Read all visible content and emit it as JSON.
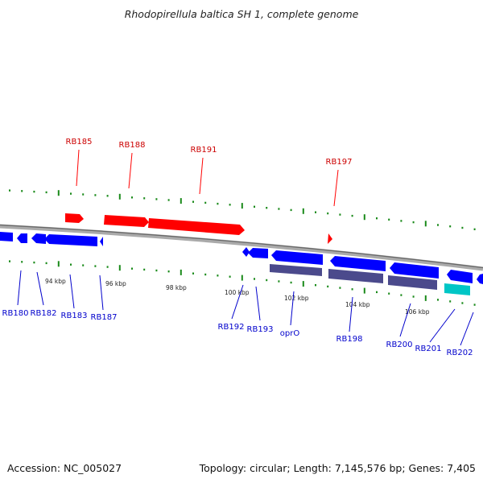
{
  "title": "Rhodopirellula baltica SH 1, complete genome",
  "footer": {
    "accession": "Accession: NC_005027",
    "summary": "Topology: circular; Length: 7,145,576 bp; Genes: 7,405"
  },
  "colors": {
    "forward_gene": "#ff0000",
    "reverse_gene": "#0000ff",
    "reverse_cds_product": "#4b4a8c",
    "highlight_product": "#00c6c6",
    "backbone": "#888888",
    "tick": "#1a8a1a"
  },
  "tick_labels": [
    "94 kbp",
    "96 kbp",
    "98 kbp",
    "100 kbp",
    "102 kbp",
    "104 kbp",
    "106 kbp"
  ],
  "top_genes": [
    "RB185",
    "RB188",
    "RB191",
    "RB197"
  ],
  "bottom_genes": [
    "RB180",
    "RB182",
    "RB183",
    "RB187",
    "RB192",
    "RB193",
    "oprO",
    "RB198",
    "RB200",
    "RB201",
    "RB202"
  ]
}
